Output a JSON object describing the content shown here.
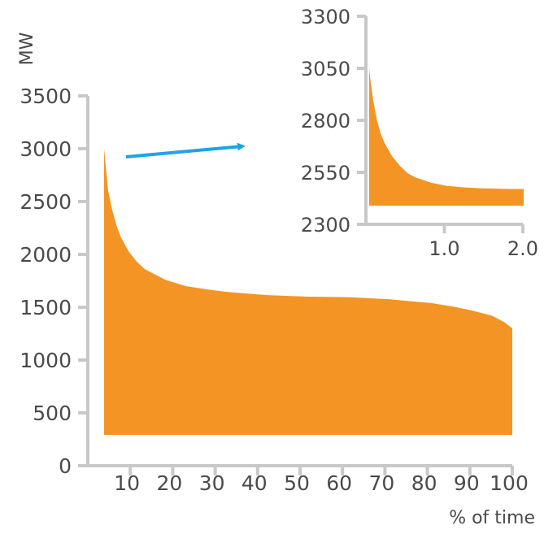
{
  "chart_data": [
    {
      "type": "area",
      "title": "",
      "ylabel": "MW",
      "xlabel": "% of time",
      "ylim": [
        0,
        3500
      ],
      "xlim": [
        0,
        100
      ],
      "x_ticks": [
        "10",
        "20",
        "30",
        "40",
        "50",
        "60",
        "70",
        "80",
        "90",
        "100"
      ],
      "y_ticks": [
        "0",
        "500",
        "1000",
        "1500",
        "2000",
        "2500",
        "3000",
        "3500"
      ],
      "fill_color": "#F39424",
      "x": [
        0,
        0.5,
        1,
        2,
        3,
        4,
        6,
        8,
        10,
        15,
        20,
        25,
        30,
        40,
        50,
        60,
        70,
        80,
        85,
        90,
        95,
        98,
        100
      ],
      "y": [
        3000,
        2800,
        2600,
        2420,
        2280,
        2170,
        2030,
        1930,
        1860,
        1760,
        1700,
        1670,
        1645,
        1615,
        1600,
        1595,
        1575,
        1540,
        1510,
        1470,
        1420,
        1360,
        1300
      ]
    },
    {
      "type": "area",
      "title": "",
      "ylim": [
        2300,
        3300
      ],
      "xlim": [
        0,
        2.0
      ],
      "x_ticks": [
        "1.0",
        "2.0"
      ],
      "y_ticks": [
        "2300",
        "2550",
        "2800",
        "3050",
        "3300"
      ],
      "fill_color": "#F39424",
      "x": [
        0,
        0.02,
        0.05,
        0.1,
        0.15,
        0.2,
        0.3,
        0.4,
        0.5,
        0.6,
        0.8,
        1.0,
        1.2,
        1.4,
        1.6,
        1.8,
        2.0
      ],
      "y": [
        3050,
        2980,
        2900,
        2800,
        2735,
        2690,
        2625,
        2580,
        2545,
        2525,
        2500,
        2485,
        2478,
        2474,
        2472,
        2470,
        2470
      ]
    }
  ]
}
